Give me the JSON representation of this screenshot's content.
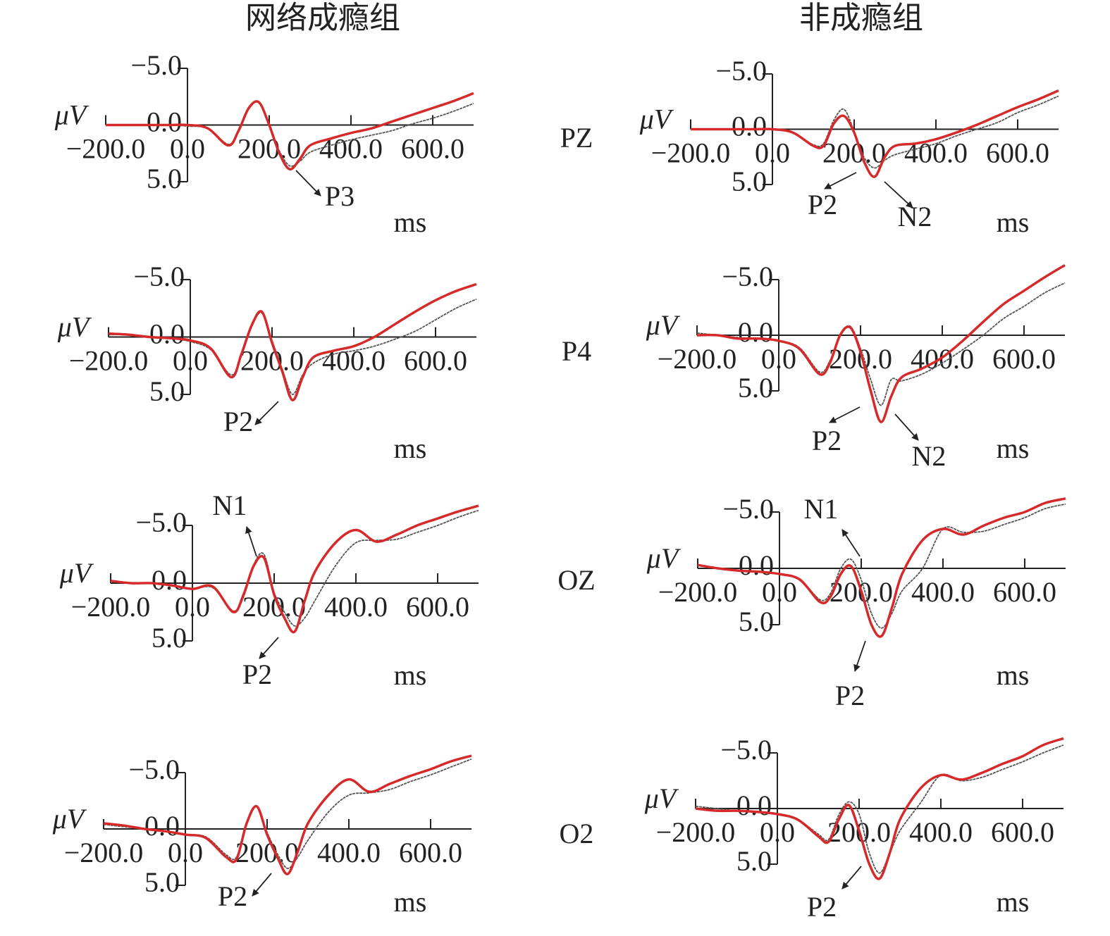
{
  "column_titles": [
    "网络成瘾组",
    "非成瘾组"
  ],
  "row_labels": [
    "PZ",
    "P4",
    "OZ",
    "O2"
  ],
  "chart_data": [
    {
      "type": "line",
      "ylabel": "μV",
      "xlabel": "ms",
      "annotations": [
        "P3"
      ],
      "x": [
        -200,
        -150,
        -100,
        -50,
        0,
        50,
        100,
        125,
        150,
        175,
        200,
        225,
        250,
        275,
        300,
        350,
        400,
        450,
        500,
        550,
        600,
        650,
        700
      ],
      "xlim": [
        -200,
        700
      ],
      "ylim": [
        -5,
        5
      ],
      "xticks": [
        {
          "value": -200,
          "label": "−200.0"
        },
        {
          "value": 0,
          "label": "0.0"
        },
        {
          "value": 200,
          "label": "200.0"
        },
        {
          "value": 400,
          "label": "400.0"
        },
        {
          "value": 600,
          "label": "600.0"
        }
      ],
      "yticks": [
        {
          "value": -5,
          "label": "−5.0"
        },
        {
          "value": 0,
          "label": "0.0"
        },
        {
          "value": 5,
          "label": "5.0"
        }
      ],
      "series": [
        {
          "color": "#555555",
          "values": [
            0,
            0,
            0,
            0,
            0.1,
            0.3,
            1.7,
            0.6,
            -1.4,
            -2,
            0,
            2.3,
            3.6,
            3.2,
            2.4,
            1.8,
            1.3,
            0.9,
            0.5,
            -0.1,
            -0.6,
            -1.2,
            -1.9
          ]
        },
        {
          "color": "#d62a2a",
          "values": [
            0,
            0,
            0,
            0,
            0,
            0.3,
            1.8,
            0.5,
            -1.5,
            -2,
            0,
            2.5,
            3.9,
            3,
            1.8,
            1.2,
            0.7,
            0.3,
            -0.3,
            -0.9,
            -1.5,
            -2.1,
            -2.8
          ]
        }
      ]
    },
    {
      "type": "line",
      "ylabel": "μV",
      "xlabel": "ms",
      "annotations": [
        "P2"
      ],
      "x": [
        -200,
        -150,
        -100,
        -50,
        0,
        50,
        100,
        125,
        150,
        175,
        200,
        225,
        250,
        275,
        300,
        350,
        400,
        450,
        500,
        550,
        600,
        650,
        700
      ],
      "xlim": [
        -200,
        700
      ],
      "ylim": [
        -5,
        5
      ],
      "xticks": [
        {
          "value": -200,
          "label": "−200.0"
        },
        {
          "value": 0,
          "label": "0.0"
        },
        {
          "value": 200,
          "label": "200.0"
        },
        {
          "value": 400,
          "label": "400.0"
        },
        {
          "value": 600,
          "label": "600.0"
        }
      ],
      "yticks": [
        {
          "value": -5,
          "label": "−5.0"
        },
        {
          "value": 0,
          "label": "0.0"
        },
        {
          "value": 5,
          "label": "5.0"
        }
      ],
      "series": [
        {
          "color": "#555555",
          "values": [
            -0.2,
            -0.2,
            0,
            0.1,
            0.4,
            1.1,
            3.3,
            1.6,
            -0.9,
            -2.1,
            0.3,
            2.8,
            5,
            3.3,
            2.3,
            1.5,
            1.2,
            0.8,
            0.2,
            -0.5,
            -1.5,
            -2.5,
            -3.3
          ]
        },
        {
          "color": "#d62a2a",
          "values": [
            -0.3,
            -0.2,
            0,
            0.1,
            0.3,
            1,
            3.5,
            1.5,
            -1,
            -2.2,
            0.5,
            3,
            5.5,
            3.5,
            1.8,
            1.2,
            0.8,
            0,
            -1.1,
            -2.2,
            -3.2,
            -4,
            -4.6
          ]
        }
      ]
    },
    {
      "type": "line",
      "ylabel": "μV",
      "xlabel": "ms",
      "annotations": [
        "N1",
        "P2"
      ],
      "x": [
        -200,
        -150,
        -100,
        -50,
        0,
        50,
        100,
        125,
        150,
        175,
        200,
        225,
        250,
        275,
        300,
        350,
        400,
        450,
        500,
        550,
        600,
        650,
        700
      ],
      "xlim": [
        -200,
        700
      ],
      "ylim": [
        -5,
        5
      ],
      "xticks": [
        {
          "value": -200,
          "label": "−200.0"
        },
        {
          "value": 0,
          "label": "0.0"
        },
        {
          "value": 200,
          "label": "200.0"
        },
        {
          "value": 400,
          "label": "400.0"
        },
        {
          "value": 600,
          "label": "600.0"
        }
      ],
      "yticks": [
        {
          "value": -5,
          "label": "−5.0"
        },
        {
          "value": 0,
          "label": "0.0"
        },
        {
          "value": 5,
          "label": "5.0"
        }
      ],
      "series": [
        {
          "color": "#555555",
          "values": [
            -0.2,
            0,
            0,
            0.2,
            0.5,
            0.4,
            2.4,
            1.2,
            -1.6,
            -2.5,
            0.8,
            2.5,
            3.7,
            3,
            1.5,
            -1.5,
            -3.5,
            -3.7,
            -3.8,
            -4.4,
            -5,
            -5.7,
            -6.3
          ]
        },
        {
          "color": "#d62a2a",
          "values": [
            -0.2,
            0,
            0,
            0.2,
            0.5,
            0.3,
            2.5,
            1,
            -1.5,
            -2.2,
            1,
            3,
            4.2,
            1.5,
            -1,
            -3.5,
            -4.6,
            -3.6,
            -4.2,
            -5,
            -5.6,
            -6.2,
            -6.7
          ]
        }
      ]
    },
    {
      "type": "line",
      "ylabel": "μV",
      "xlabel": "ms",
      "annotations": [
        "P2"
      ],
      "x": [
        -200,
        -150,
        -100,
        -50,
        0,
        50,
        100,
        125,
        150,
        175,
        200,
        225,
        250,
        275,
        300,
        350,
        400,
        450,
        500,
        550,
        600,
        650,
        700
      ],
      "xlim": [
        -200,
        700
      ],
      "ylim": [
        -5,
        5
      ],
      "xticks": [
        {
          "value": -200,
          "label": "−200.0"
        },
        {
          "value": 0,
          "label": "0.0"
        },
        {
          "value": 200,
          "label": "200.0"
        },
        {
          "value": 400,
          "label": "400.0"
        },
        {
          "value": 600,
          "label": "600.0"
        }
      ],
      "yticks": [
        {
          "value": -5,
          "label": "−5.0"
        },
        {
          "value": 0,
          "label": "0.0"
        },
        {
          "value": 5,
          "label": "5.0"
        }
      ],
      "series": [
        {
          "color": "#555555",
          "values": [
            -0.4,
            -0.2,
            0,
            0.2,
            0.5,
            0.7,
            2.3,
            2.5,
            -0.4,
            -2,
            0.3,
            2.2,
            3.5,
            2.5,
            1,
            -1.5,
            -3,
            -3.2,
            -3.5,
            -4.2,
            -4.8,
            -5.5,
            -6.2
          ]
        },
        {
          "color": "#d62a2a",
          "values": [
            -0.5,
            -0.3,
            0,
            0.2,
            0.5,
            0.8,
            2.5,
            2.7,
            -0.5,
            -2,
            0.5,
            2.5,
            4,
            2,
            -0.5,
            -3,
            -4.4,
            -3.3,
            -4,
            -4.7,
            -5.3,
            -6,
            -6.5
          ]
        }
      ]
    },
    {
      "type": "line",
      "ylabel": "μV",
      "xlabel": "ms",
      "annotations": [
        "P2",
        "N2"
      ],
      "x": [
        -200,
        -150,
        -100,
        -50,
        0,
        50,
        100,
        125,
        150,
        175,
        200,
        225,
        250,
        275,
        300,
        350,
        400,
        450,
        500,
        550,
        600,
        650,
        700
      ],
      "xlim": [
        -200,
        700
      ],
      "ylim": [
        -5,
        5
      ],
      "xticks": [
        {
          "value": -200,
          "label": "−200.0"
        },
        {
          "value": 0,
          "label": "0.0"
        },
        {
          "value": 200,
          "label": "200.0"
        },
        {
          "value": 400,
          "label": "400.0"
        },
        {
          "value": 600,
          "label": "600.0"
        }
      ],
      "yticks": [
        {
          "value": -5,
          "label": "−5.0"
        },
        {
          "value": 0,
          "label": "0.0"
        },
        {
          "value": 5,
          "label": "5.0"
        }
      ],
      "series": [
        {
          "color": "#555555",
          "values": [
            0,
            0,
            0,
            0,
            0,
            0.3,
            1.4,
            1.3,
            -0.8,
            -1.8,
            0.2,
            2.6,
            3.5,
            2.8,
            2.3,
            1.8,
            1.3,
            0.6,
            0,
            -0.6,
            -1.5,
            -2.2,
            -3
          ]
        },
        {
          "color": "#d62a2a",
          "values": [
            0,
            0,
            0,
            0,
            0,
            0.3,
            1.5,
            1.5,
            -0.5,
            -1.2,
            0.3,
            3,
            4.3,
            2.5,
            1.5,
            1.3,
            0.9,
            0.3,
            -0.4,
            -1.2,
            -2,
            -2.7,
            -3.5
          ]
        }
      ]
    },
    {
      "type": "line",
      "ylabel": "μV",
      "xlabel": "ms",
      "annotations": [
        "P2",
        "N2"
      ],
      "x": [
        -200,
        -150,
        -100,
        -50,
        0,
        50,
        100,
        125,
        150,
        175,
        200,
        225,
        250,
        275,
        300,
        350,
        400,
        450,
        500,
        550,
        600,
        650,
        700
      ],
      "xlim": [
        -200,
        700
      ],
      "ylim": [
        -5,
        5
      ],
      "xticks": [
        {
          "value": -200,
          "label": "−200.0"
        },
        {
          "value": 0,
          "label": "0.0"
        },
        {
          "value": 200,
          "label": "200.0"
        },
        {
          "value": 400,
          "label": "400.0"
        },
        {
          "value": 600,
          "label": "600.0"
        }
      ],
      "yticks": [
        {
          "value": -5,
          "label": "−5.0"
        },
        {
          "value": 0,
          "label": "0.0"
        },
        {
          "value": 5,
          "label": "5.0"
        }
      ],
      "series": [
        {
          "color": "#555555",
          "values": [
            -0.2,
            0,
            0.2,
            0.3,
            0.5,
            1.1,
            3.3,
            2.3,
            0,
            -0.8,
            1.2,
            4,
            6.3,
            4,
            4.1,
            3.5,
            2.5,
            1.3,
            0,
            -1.5,
            -2.6,
            -3.8,
            -4.7
          ]
        },
        {
          "color": "#d62a2a",
          "values": [
            0,
            0,
            0.3,
            0.3,
            0.5,
            1.2,
            3.5,
            2.5,
            0,
            -0.7,
            1.5,
            5,
            7.8,
            5.5,
            3.8,
            3,
            2,
            0.5,
            -1.2,
            -2.8,
            -4,
            -5.2,
            -6.3
          ]
        }
      ]
    },
    {
      "type": "line",
      "ylabel": "μV",
      "xlabel": "ms",
      "annotations": [
        "N1",
        "P2"
      ],
      "x": [
        -200,
        -150,
        -100,
        -50,
        0,
        50,
        100,
        125,
        150,
        175,
        200,
        225,
        250,
        275,
        300,
        350,
        400,
        450,
        500,
        550,
        600,
        650,
        700
      ],
      "xlim": [
        -200,
        700
      ],
      "ylim": [
        -5,
        5
      ],
      "xticks": [
        {
          "value": -200,
          "label": "−200.0"
        },
        {
          "value": 0,
          "label": "0.0"
        },
        {
          "value": 200,
          "label": "200.0"
        },
        {
          "value": 400,
          "label": "400.0"
        },
        {
          "value": 600,
          "label": "600.0"
        }
      ],
      "yticks": [
        {
          "value": -5,
          "label": "−5.0"
        },
        {
          "value": 0,
          "label": "0.0"
        },
        {
          "value": 5,
          "label": "5.0"
        }
      ],
      "series": [
        {
          "color": "#555555",
          "values": [
            -0.3,
            0,
            0.2,
            0.3,
            0.5,
            1,
            2.8,
            2.2,
            0,
            -0.8,
            1,
            4,
            5.3,
            4,
            2,
            0,
            -3.5,
            -3.2,
            -3.3,
            -3.9,
            -4.5,
            -5.3,
            -5.7
          ]
        },
        {
          "color": "#d62a2a",
          "values": [
            -0.3,
            0,
            0.2,
            0.3,
            0.5,
            1,
            3,
            2.5,
            0.5,
            -0.2,
            2,
            5,
            6,
            3.5,
            0.5,
            -2.5,
            -3.5,
            -3,
            -3.8,
            -4.5,
            -5,
            -5.8,
            -6.2
          ]
        }
      ]
    },
    {
      "type": "line",
      "ylabel": "μV",
      "xlabel": "ms",
      "annotations": [
        "P2"
      ],
      "x": [
        -200,
        -150,
        -100,
        -50,
        0,
        50,
        100,
        125,
        150,
        175,
        200,
        225,
        250,
        275,
        300,
        350,
        400,
        450,
        500,
        550,
        600,
        650,
        700
      ],
      "xlim": [
        -200,
        700
      ],
      "ylim": [
        -5,
        5
      ],
      "xticks": [
        {
          "value": -200,
          "label": "−200.0"
        },
        {
          "value": 0,
          "label": "0.0"
        },
        {
          "value": 200,
          "label": "200.0"
        },
        {
          "value": 400,
          "label": "400.0"
        },
        {
          "value": 600,
          "label": "600.0"
        }
      ],
      "yticks": [
        {
          "value": -5,
          "label": "−5.0"
        },
        {
          "value": 0,
          "label": "0.0"
        },
        {
          "value": 5,
          "label": "5.0"
        }
      ],
      "series": [
        {
          "color": "#555555",
          "values": [
            -0.2,
            0,
            0.2,
            0.3,
            0.5,
            1,
            2.3,
            2.8,
            0.6,
            -0.6,
            0.5,
            4,
            5.8,
            4,
            2,
            -0.5,
            -3,
            -2.5,
            -2.8,
            -3.5,
            -4.2,
            -5,
            -5.7
          ]
        },
        {
          "color": "#d62a2a",
          "values": [
            0,
            0.2,
            0.2,
            0.3,
            0.5,
            1,
            2.5,
            3,
            1,
            -0.3,
            2,
            5,
            6.3,
            4,
            1,
            -1.8,
            -3,
            -2.6,
            -3.2,
            -4,
            -4.7,
            -5.7,
            -6.3
          ]
        }
      ]
    }
  ]
}
